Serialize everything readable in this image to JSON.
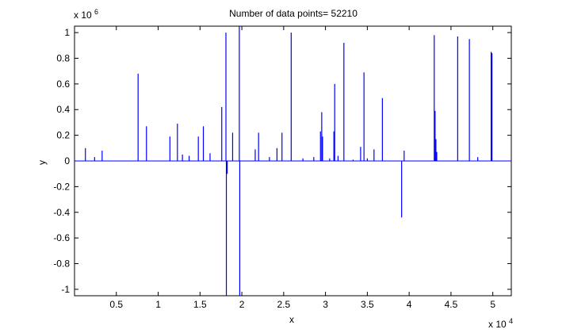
{
  "chart_data": {
    "type": "line",
    "title": "Number of data points= 52210",
    "xlabel": "x",
    "ylabel": "y",
    "x_multiplier_label": "x 10",
    "x_multiplier_exp": "4",
    "y_multiplier_label": "x 10",
    "y_multiplier_exp": "6",
    "xlim": [
      0,
      52210
    ],
    "ylim": [
      -1050000,
      1050000
    ],
    "x_ticks": [
      5000,
      10000,
      15000,
      20000,
      25000,
      30000,
      35000,
      40000,
      45000,
      50000
    ],
    "x_tick_labels": [
      "0.5",
      "1",
      "1.5",
      "2",
      "2.5",
      "3",
      "3.5",
      "4",
      "4.5",
      "5"
    ],
    "y_ticks": [
      -1000000,
      -800000,
      -600000,
      -400000,
      -200000,
      0,
      200000,
      400000,
      600000,
      800000,
      1000000
    ],
    "y_tick_labels": [
      "-1",
      "-0.8",
      "-0.6",
      "-0.4",
      "-0.2",
      "0",
      "0.2",
      "0.4",
      "0.6",
      "0.8",
      "1"
    ],
    "grid": false,
    "line_color": "#0000ff",
    "series": [
      {
        "spikes": [
          {
            "x": 1300,
            "y": 100000
          },
          {
            "x": 2400,
            "y": 30000
          },
          {
            "x": 3300,
            "y": 80000
          },
          {
            "x": 7600,
            "y": 680000
          },
          {
            "x": 8600,
            "y": 270000
          },
          {
            "x": 11400,
            "y": 190000
          },
          {
            "x": 12300,
            "y": 290000
          },
          {
            "x": 12900,
            "y": 50000
          },
          {
            "x": 13700,
            "y": 40000
          },
          {
            "x": 14800,
            "y": 190000
          },
          {
            "x": 15400,
            "y": 270000
          },
          {
            "x": 16200,
            "y": 60000
          },
          {
            "x": 17600,
            "y": 420000
          },
          {
            "x": 18100,
            "y": 1000000
          },
          {
            "x": 18150,
            "y": -1050000
          },
          {
            "x": 18250,
            "y": -100000
          },
          {
            "x": 18900,
            "y": 220000
          },
          {
            "x": 19700,
            "y": 1050000
          },
          {
            "x": 19750,
            "y": -1050000
          },
          {
            "x": 21600,
            "y": 90000
          },
          {
            "x": 22000,
            "y": 220000
          },
          {
            "x": 23300,
            "y": 30000
          },
          {
            "x": 24200,
            "y": 100000
          },
          {
            "x": 24800,
            "y": 220000
          },
          {
            "x": 25900,
            "y": 1000000
          },
          {
            "x": 27300,
            "y": 20000
          },
          {
            "x": 28600,
            "y": 30000
          },
          {
            "x": 29400,
            "y": 230000
          },
          {
            "x": 29550,
            "y": 380000
          },
          {
            "x": 29650,
            "y": 190000
          },
          {
            "x": 30500,
            "y": 20000
          },
          {
            "x": 31000,
            "y": 230000
          },
          {
            "x": 31100,
            "y": 600000
          },
          {
            "x": 31500,
            "y": 40000
          },
          {
            "x": 32200,
            "y": 920000
          },
          {
            "x": 33300,
            "y": 10000
          },
          {
            "x": 34200,
            "y": 110000
          },
          {
            "x": 34600,
            "y": 690000
          },
          {
            "x": 35000,
            "y": 20000
          },
          {
            "x": 35800,
            "y": 90000
          },
          {
            "x": 36800,
            "y": 490000
          },
          {
            "x": 39100,
            "y": -440000
          },
          {
            "x": 39400,
            "y": 80000
          },
          {
            "x": 43000,
            "y": 980000
          },
          {
            "x": 43100,
            "y": 390000
          },
          {
            "x": 43200,
            "y": 170000
          },
          {
            "x": 43300,
            "y": 70000
          },
          {
            "x": 45800,
            "y": 970000
          },
          {
            "x": 47200,
            "y": 950000
          },
          {
            "x": 48200,
            "y": 30000
          },
          {
            "x": 49800,
            "y": 850000
          },
          {
            "x": 49900,
            "y": 840000
          }
        ]
      }
    ]
  }
}
